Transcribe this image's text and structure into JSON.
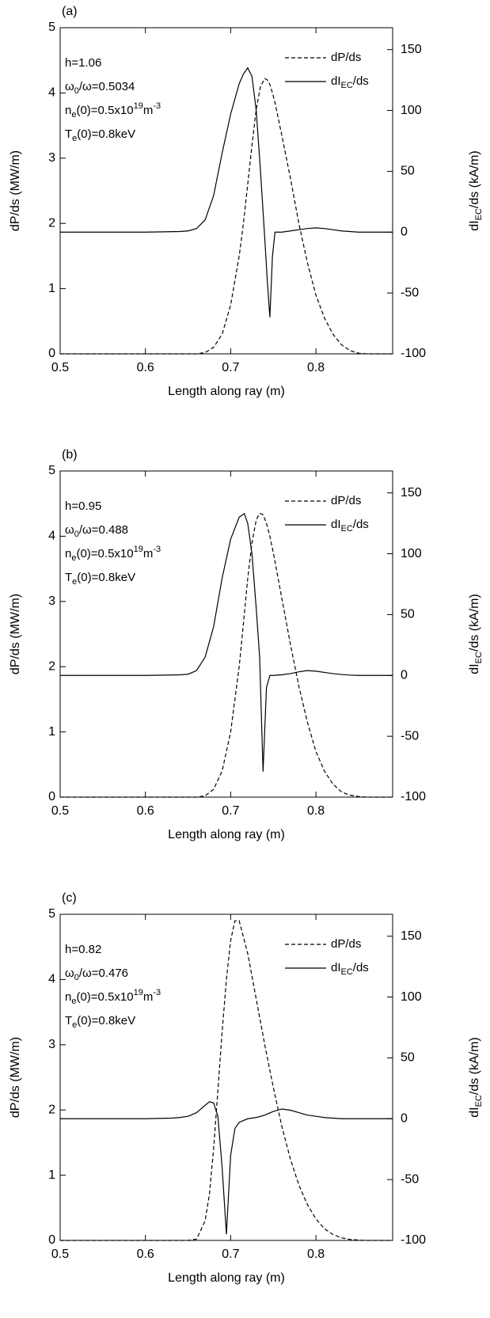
{
  "chart_data": [
    {
      "type": "line",
      "title": "(a)",
      "xlabel": "Length along ray (m)",
      "ylabel": "dP/ds (MW/m)",
      "y2label": [
        "dI",
        {
          "sub": "EC"
        },
        "/ds (kA/m)"
      ],
      "xlim": [
        0.5,
        0.89
      ],
      "xticks": [
        0.5,
        0.6,
        0.7,
        0.8
      ],
      "ylim": [
        0,
        5
      ],
      "yticks": [
        0,
        1,
        2,
        3,
        4,
        5
      ],
      "y2lim": [
        -100,
        168
      ],
      "y2ticks": [
        -100,
        -50,
        0,
        50,
        100,
        150
      ],
      "annotations": [
        [
          "h=1.06"
        ],
        [
          "ω",
          {
            "sub": "0"
          },
          "/ω=0.5034"
        ],
        [
          "n",
          {
            "sub": "e"
          },
          "(0)=0.5x10",
          {
            "sup": "19"
          },
          "m",
          {
            "sup": "-3"
          }
        ],
        [
          "T",
          {
            "sub": "e"
          },
          "(0)=0.8keV"
        ]
      ],
      "x": [
        0.5,
        0.6,
        0.64,
        0.65,
        0.66,
        0.67,
        0.68,
        0.69,
        0.7,
        0.71,
        0.715,
        0.72,
        0.725,
        0.73,
        0.735,
        0.74,
        0.743,
        0.746,
        0.749,
        0.752,
        0.76,
        0.77,
        0.78,
        0.79,
        0.8,
        0.81,
        0.82,
        0.83,
        0.84,
        0.85,
        0.86,
        0.89
      ],
      "series": [
        {
          "name": [
            "dP/ds"
          ],
          "color": "#000000",
          "dash": "dashed",
          "values": [
            0,
            0,
            0,
            0,
            0,
            0.02,
            0.1,
            0.3,
            0.75,
            1.5,
            2.0,
            2.6,
            3.2,
            3.75,
            4.1,
            4.22,
            4.2,
            4.13,
            4.0,
            3.85,
            3.35,
            2.7,
            2.0,
            1.4,
            0.9,
            0.55,
            0.3,
            0.14,
            0.05,
            0.01,
            0,
            0
          ]
        },
        {
          "name": [
            "dI",
            {
              "sub": "EC"
            },
            "/ds"
          ],
          "color": "#000000",
          "dash": "solid",
          "axis": "y2",
          "values": [
            0,
            0,
            0.5,
            1,
            3,
            10,
            30,
            65,
            97,
            122,
            130,
            135,
            128,
            100,
            50,
            -5,
            -40,
            -70,
            -20,
            0,
            0,
            1,
            2,
            3,
            3.5,
            3,
            2,
            1,
            0.5,
            0,
            0,
            0
          ]
        }
      ]
    },
    {
      "type": "line",
      "title": "(b)",
      "xlabel": "Length along ray (m)",
      "ylabel": "dP/ds (MW/m)",
      "y2label": [
        "dI",
        {
          "sub": "EC"
        },
        "/ds (kA/m)"
      ],
      "xlim": [
        0.5,
        0.89
      ],
      "xticks": [
        0.5,
        0.6,
        0.7,
        0.8
      ],
      "ylim": [
        0,
        5
      ],
      "yticks": [
        0,
        1,
        2,
        3,
        4,
        5
      ],
      "y2lim": [
        -100,
        168
      ],
      "y2ticks": [
        -100,
        -50,
        0,
        50,
        100,
        150
      ],
      "annotations": [
        [
          "h=0.95"
        ],
        [
          "ω",
          {
            "sub": "0"
          },
          "/ω=0.488"
        ],
        [
          "n",
          {
            "sub": "e"
          },
          "(0)=0.5x10",
          {
            "sup": "19"
          },
          "m",
          {
            "sup": "-3"
          }
        ],
        [
          "T",
          {
            "sub": "e"
          },
          "(0)=0.8keV"
        ]
      ],
      "x": [
        0.5,
        0.6,
        0.64,
        0.65,
        0.66,
        0.67,
        0.68,
        0.69,
        0.7,
        0.71,
        0.716,
        0.72,
        0.725,
        0.73,
        0.734,
        0.738,
        0.742,
        0.746,
        0.75,
        0.76,
        0.77,
        0.78,
        0.79,
        0.8,
        0.81,
        0.82,
        0.83,
        0.84,
        0.85,
        0.86,
        0.89
      ],
      "series": [
        {
          "name": [
            "dP/ds"
          ],
          "color": "#000000",
          "dash": "dashed",
          "values": [
            0,
            0,
            0,
            0,
            0,
            0.02,
            0.12,
            0.4,
            1.0,
            2.0,
            2.8,
            3.35,
            3.9,
            4.25,
            4.35,
            4.33,
            4.2,
            4.0,
            3.75,
            3.05,
            2.35,
            1.7,
            1.15,
            0.7,
            0.4,
            0.2,
            0.08,
            0.03,
            0.01,
            0,
            0
          ]
        },
        {
          "name": [
            "dI",
            {
              "sub": "EC"
            },
            "/ds"
          ],
          "color": "#000000",
          "dash": "solid",
          "axis": "y2",
          "values": [
            0,
            0,
            0.5,
            1,
            4,
            15,
            40,
            80,
            112,
            130,
            133,
            125,
            100,
            55,
            15,
            -79,
            -10,
            0,
            0,
            0.5,
            1.5,
            3,
            4,
            3.5,
            2.5,
            1.5,
            0.8,
            0.3,
            0,
            0,
            0
          ]
        }
      ]
    },
    {
      "type": "line",
      "title": "(c)",
      "xlabel": "Length along ray (m)",
      "ylabel": "dP/ds (MW/m)",
      "y2label": [
        "dI",
        {
          "sub": "EC"
        },
        "/ds (kA/m)"
      ],
      "xlim": [
        0.5,
        0.89
      ],
      "xticks": [
        0.5,
        0.6,
        0.7,
        0.8
      ],
      "ylim": [
        0,
        5
      ],
      "yticks": [
        0,
        1,
        2,
        3,
        4,
        5
      ],
      "y2lim": [
        -100,
        168
      ],
      "y2ticks": [
        -100,
        -50,
        0,
        50,
        100,
        150
      ],
      "annotations": [
        [
          "h=0.82"
        ],
        [
          "ω",
          {
            "sub": "0"
          },
          "/ω=0.476"
        ],
        [
          "n",
          {
            "sub": "e"
          },
          "(0)=0.5x10",
          {
            "sup": "19"
          },
          "m",
          {
            "sup": "-3"
          }
        ],
        [
          "T",
          {
            "sub": "e"
          },
          "(0)=0.8keV"
        ]
      ],
      "x": [
        0.5,
        0.6,
        0.63,
        0.64,
        0.65,
        0.66,
        0.67,
        0.675,
        0.68,
        0.685,
        0.69,
        0.695,
        0.7,
        0.705,
        0.71,
        0.72,
        0.73,
        0.74,
        0.75,
        0.76,
        0.77,
        0.78,
        0.79,
        0.8,
        0.81,
        0.82,
        0.83,
        0.84,
        0.85,
        0.86,
        0.89
      ],
      "series": [
        {
          "name": [
            "dP/ds"
          ],
          "color": "#000000",
          "dash": "dashed",
          "values": [
            0,
            0,
            0,
            0,
            0,
            0.02,
            0.3,
            0.7,
            1.4,
            2.3,
            3.2,
            4.0,
            4.6,
            4.9,
            4.9,
            4.4,
            3.7,
            3.0,
            2.35,
            1.75,
            1.25,
            0.85,
            0.55,
            0.33,
            0.18,
            0.09,
            0.04,
            0.015,
            0.005,
            0,
            0
          ]
        },
        {
          "name": [
            "dI",
            {
              "sub": "EC"
            },
            "/ds"
          ],
          "color": "#000000",
          "dash": "solid",
          "axis": "y2",
          "values": [
            0,
            0,
            0.5,
            1,
            2,
            5,
            11,
            14,
            13,
            2,
            -40,
            -95,
            -30,
            -8,
            -3,
            0,
            1,
            3,
            6,
            8,
            7,
            5,
            3,
            2,
            1,
            0.5,
            0,
            0,
            0,
            0,
            0
          ]
        }
      ]
    }
  ]
}
